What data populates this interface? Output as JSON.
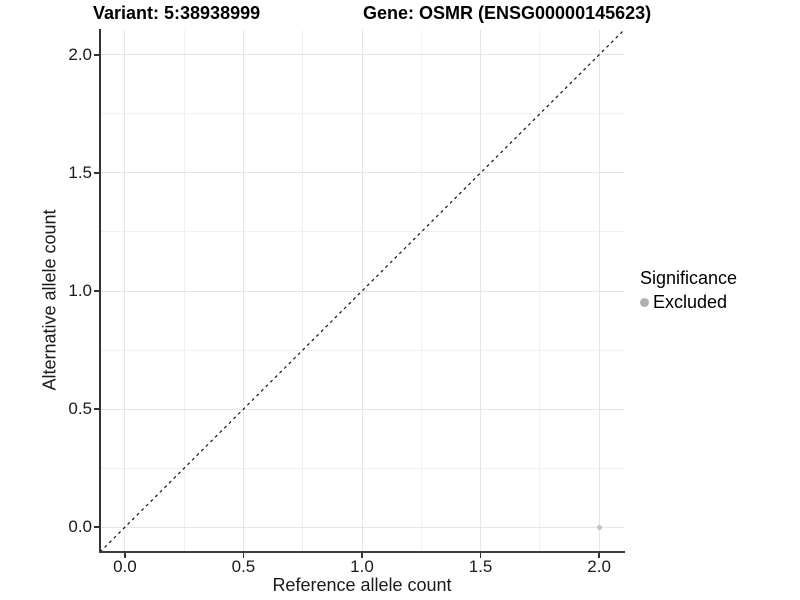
{
  "header": {
    "variant_title": "Variant: 5:38938999",
    "gene_title": "Gene: OSMR (ENSG00000145623)"
  },
  "chart_data": {
    "type": "scatter",
    "xlabel": "Reference allele count",
    "ylabel": "Alternative allele count",
    "xlim": [
      -0.105,
      2.105
    ],
    "ylim": [
      -0.105,
      2.105
    ],
    "x_ticks": {
      "values": [
        0.0,
        0.5,
        1.0,
        1.5,
        2.0
      ],
      "labels": [
        "0.0",
        "0.5",
        "1.0",
        "1.5",
        "2.0"
      ]
    },
    "y_ticks": {
      "values": [
        0.0,
        0.5,
        1.0,
        1.5,
        2.0
      ],
      "labels": [
        "0.0",
        "0.5",
        "1.0",
        "1.5",
        "2.0"
      ]
    },
    "minor_ticks": [
      0.25,
      0.75,
      1.25,
      1.75
    ],
    "grid": true,
    "points": [
      {
        "x": 2.0,
        "y": 0.0,
        "series": "Excluded",
        "color": "#c2c2c2"
      }
    ],
    "reference_line": {
      "equation": "y = x",
      "style": "dashed",
      "color": "#111111"
    },
    "legend": {
      "title": "Significance",
      "position": "right",
      "items": [
        {
          "label": "Excluded",
          "color": "#b0b0b0"
        }
      ]
    },
    "colors": {
      "excluded_point": "#c2c2c2",
      "grid_major": "#e5e5e5",
      "grid_minor": "#f0f0f0",
      "axis_line": "#333333",
      "text": "#1a1a1a"
    }
  }
}
